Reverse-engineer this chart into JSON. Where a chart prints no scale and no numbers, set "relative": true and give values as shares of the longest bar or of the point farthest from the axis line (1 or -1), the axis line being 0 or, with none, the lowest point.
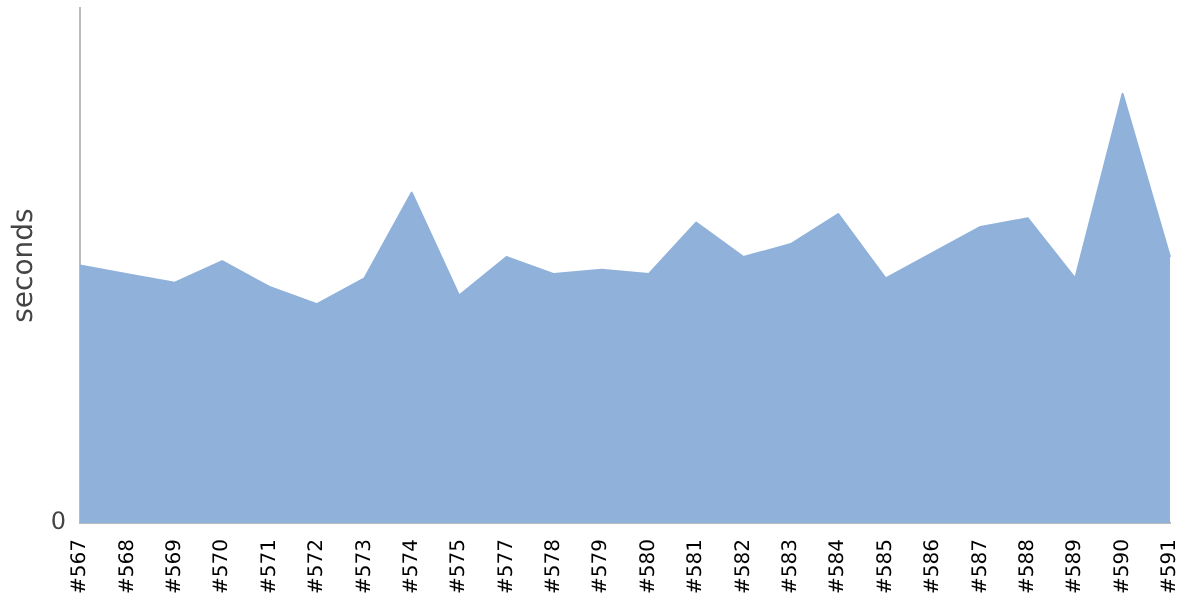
{
  "chart_data": {
    "type": "area",
    "ylabel": "seconds",
    "relative": true,
    "annotations": [
      "0"
    ],
    "color": "#8fb1da",
    "grid": false,
    "legend": false,
    "categories": [
      "#567",
      "#568",
      "#569",
      "#570",
      "#571",
      "#572",
      "#573",
      "#574",
      "#575",
      "#577",
      "#578",
      "#579",
      "#580",
      "#581",
      "#582",
      "#583",
      "#584",
      "#585",
      "#586",
      "#587",
      "#588",
      "#589",
      "#590",
      "#591"
    ],
    "values": [
      0.6,
      0.58,
      0.56,
      0.61,
      0.55,
      0.51,
      0.57,
      0.77,
      0.53,
      0.62,
      0.58,
      0.59,
      0.58,
      0.7,
      0.62,
      0.65,
      0.72,
      0.57,
      0.63,
      0.69,
      0.71,
      0.57,
      1,
      0.62
    ]
  }
}
